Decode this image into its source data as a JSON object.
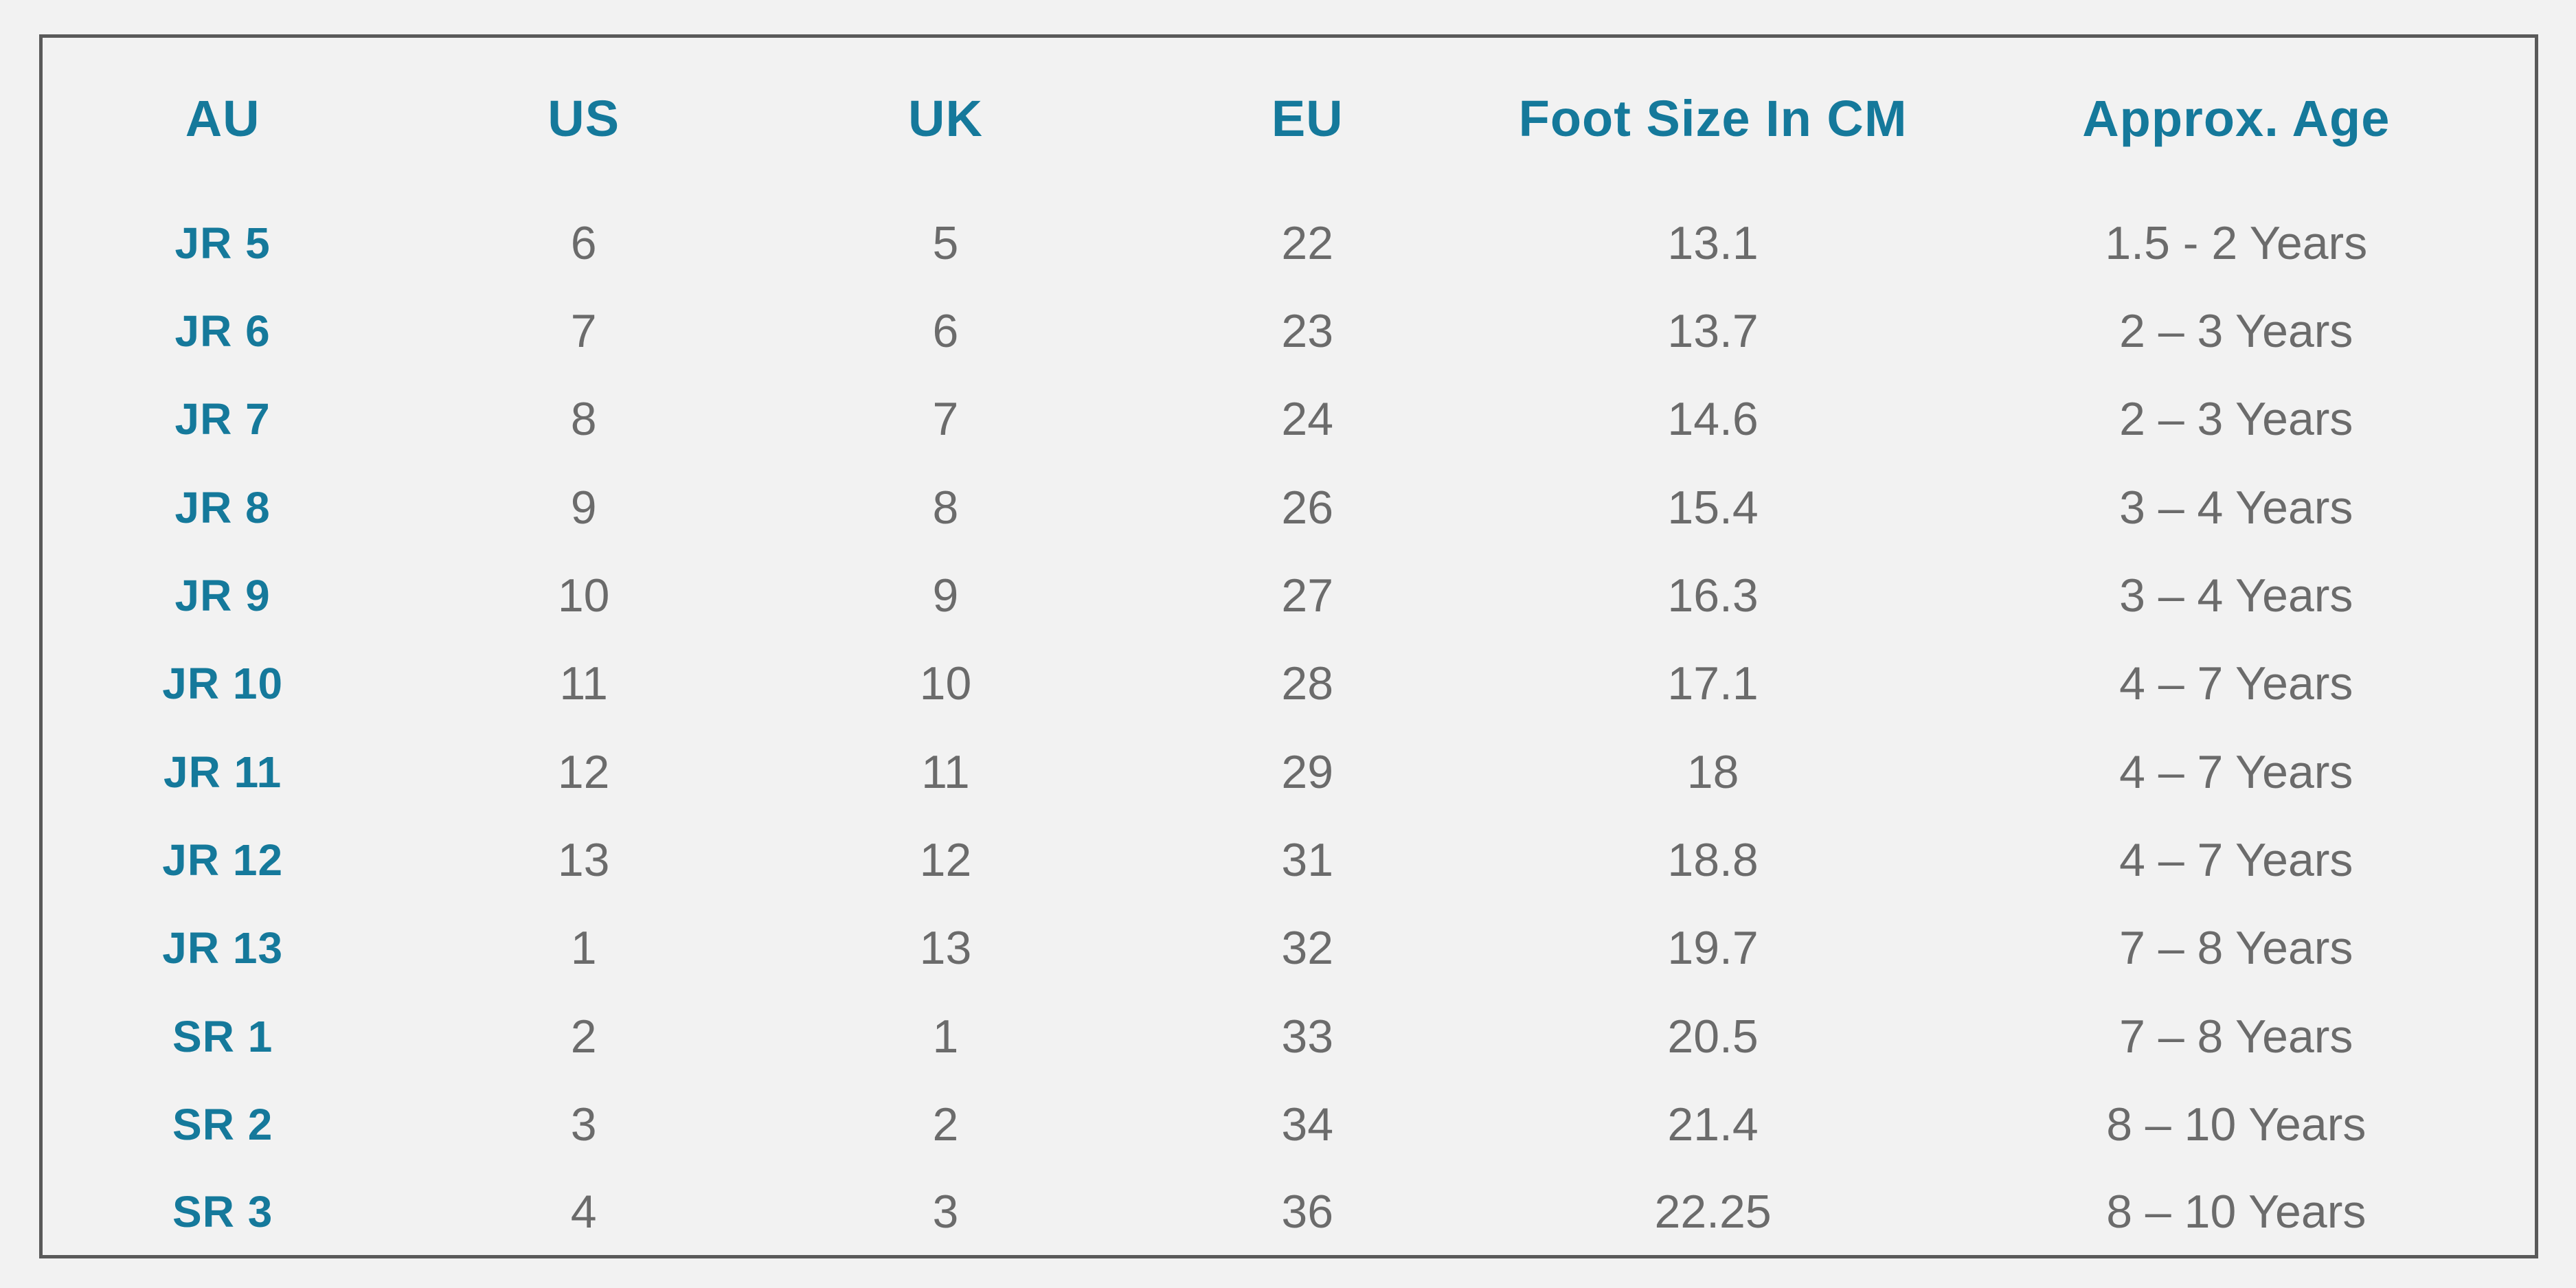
{
  "chart_data": {
    "type": "table",
    "columns": [
      "AU",
      "US",
      "UK",
      "EU",
      "Foot Size In CM",
      "Approx. Age"
    ],
    "rows": [
      [
        "JR 5",
        "6",
        "5",
        "22",
        "13.1",
        "1.5 - 2 Years"
      ],
      [
        "JR 6",
        "7",
        "6",
        "23",
        "13.7",
        "2 – 3 Years"
      ],
      [
        "JR 7",
        "8",
        "7",
        "24",
        "14.6",
        "2 – 3 Years"
      ],
      [
        "JR 8",
        "9",
        "8",
        "26",
        "15.4",
        "3 – 4 Years"
      ],
      [
        "JR 9",
        "10",
        "9",
        "27",
        "16.3",
        "3 – 4 Years"
      ],
      [
        "JR 10",
        "11",
        "10",
        "28",
        "17.1",
        "4 – 7 Years"
      ],
      [
        "JR 11",
        "12",
        "11",
        "29",
        "18",
        "4 – 7 Years"
      ],
      [
        "JR 12",
        "13",
        "12",
        "31",
        "18.8",
        "4 – 7 Years"
      ],
      [
        "JR 13",
        "1",
        "13",
        "32",
        "19.7",
        "7 – 8 Years"
      ],
      [
        "SR 1",
        "2",
        "1",
        "33",
        "20.5",
        "7 – 8 Years"
      ],
      [
        "SR 2",
        "3",
        "2",
        "34",
        "21.4",
        "8 – 10 Years"
      ],
      [
        "SR 3",
        "4",
        "3",
        "36",
        "22.25",
        "8 – 10 Years"
      ]
    ],
    "title": "",
    "legend": "none",
    "grid": "on"
  },
  "colors": {
    "background": "#F2F2F2",
    "header_text": "#15799B",
    "row_label_text": "#15799B",
    "cell_text": "#6B6B6B",
    "border_dark": "#5A5A5A",
    "grid_vertical": "#8F8F8F",
    "grid_horizontal": "#A9A9A9"
  }
}
